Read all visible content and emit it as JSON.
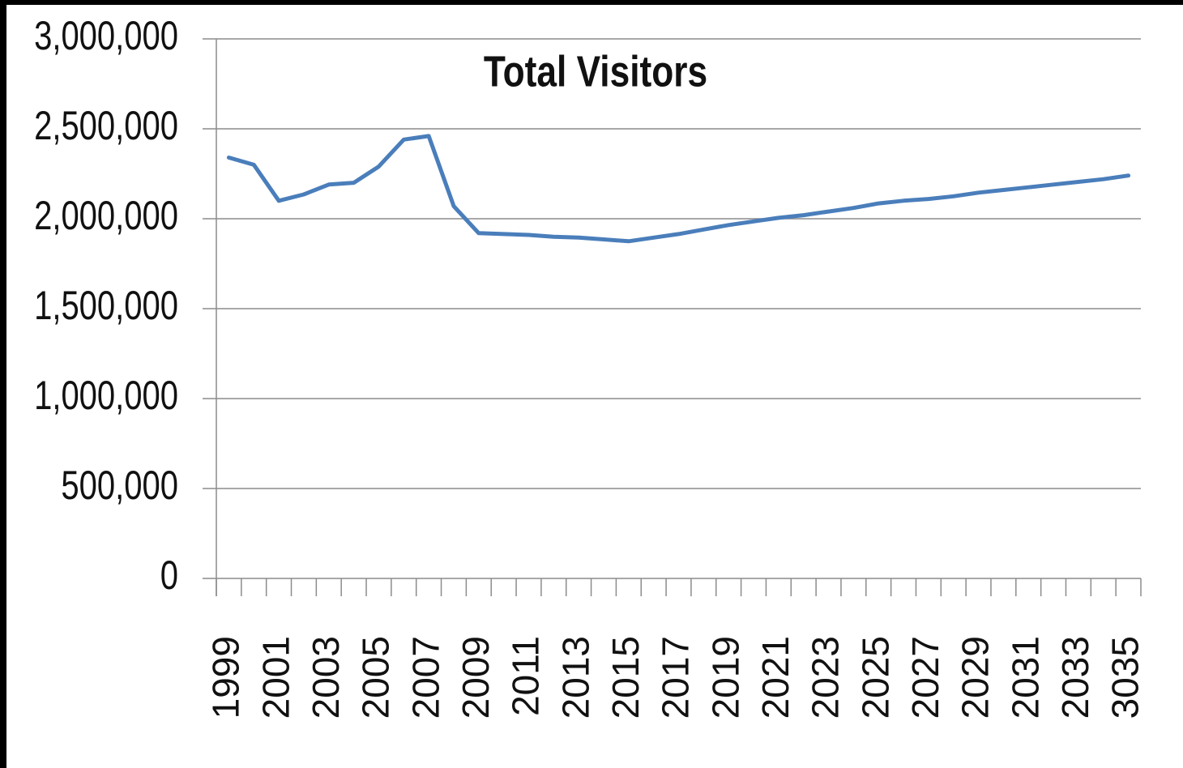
{
  "chart_data": {
    "type": "line",
    "title": "Total Visitors",
    "categories": [
      "1999",
      null,
      "2001",
      null,
      "2003",
      null,
      "2005",
      null,
      "2007",
      null,
      "2009",
      null,
      "2011",
      null,
      "2013",
      null,
      "2015",
      null,
      "2017",
      null,
      "2019",
      null,
      "2021",
      null,
      "2023",
      null,
      "2025",
      null,
      "2027",
      null,
      "2029",
      null,
      "2031",
      null,
      "2033",
      null,
      "3035"
    ],
    "values": [
      2340000,
      2300000,
      2100000,
      2135000,
      2190000,
      2200000,
      2290000,
      2440000,
      2460000,
      2070000,
      1920000,
      1915000,
      1910000,
      1900000,
      1895000,
      1885000,
      1875000,
      1895000,
      1915000,
      1940000,
      1965000,
      1985000,
      2005000,
      2020000,
      2040000,
      2060000,
      2085000,
      2100000,
      2110000,
      2125000,
      2145000,
      2160000,
      2175000,
      2190000,
      2205000,
      2220000,
      2240000
    ],
    "color": "#4a7ebb",
    "ylim": [
      0,
      3000000
    ],
    "yticks": [
      0,
      {
        "value": 500000,
        "label": "500,000"
      },
      {
        "value": 1000000,
        "label": "1,000,000"
      },
      {
        "value": 1500000,
        "label": "1,500,000"
      },
      {
        "value": 2000000,
        "label": "2,000,000"
      },
      {
        "value": 2500000,
        "label": "2,500,000"
      },
      {
        "value": 3000000,
        "label": "3,000,000"
      }
    ],
    "grid": true
  }
}
